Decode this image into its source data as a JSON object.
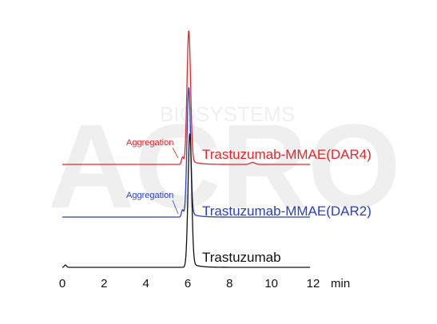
{
  "chart_data": {
    "type": "line",
    "title": "",
    "xlabel": "",
    "x_unit": "min",
    "xlim": [
      0,
      12
    ],
    "x_ticks": [
      "0",
      "2",
      "4",
      "6",
      "8",
      "10",
      "12"
    ],
    "y_axis_shown": false,
    "grid": false,
    "series": [
      {
        "name": "Trastuzumab-MMAE(DAR4)",
        "color": "#e8262a",
        "peak_time": 6.05,
        "relative_height": 1.0,
        "annotation": {
          "text": "Aggregation",
          "at_time": 5.75
        }
      },
      {
        "name": "Trastuzumab-MMAE(DAR2)",
        "color": "#2a3fc9",
        "peak_time": 6.05,
        "relative_height": 1.0,
        "annotation": {
          "text": "Aggregation",
          "at_time": 5.75
        }
      },
      {
        "name": "Trastuzumab",
        "color": "#111111",
        "peak_time": 6.1,
        "relative_height": 1.0,
        "annotation": null
      }
    ]
  },
  "watermark": {
    "text": "BIOSYSTEMS",
    "logo_text": "ACRO"
  }
}
